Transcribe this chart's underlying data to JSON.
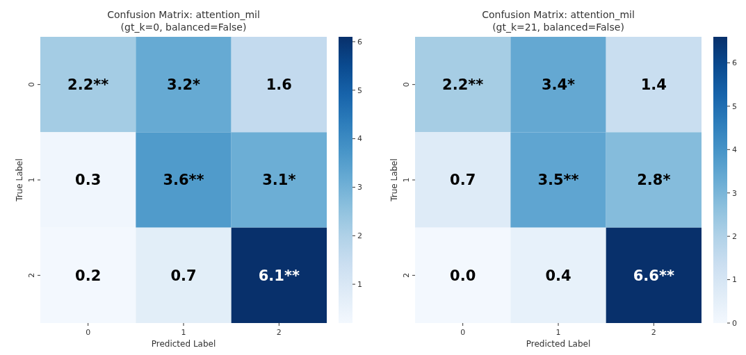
{
  "chart_data": [
    {
      "type": "heatmap",
      "title": "Confusion Matrix: attention_mil",
      "subtitle": "(gt_k=0, balanced=False)",
      "xlabel": "Predicted Label",
      "ylabel": "True Label",
      "categories": [
        "0",
        "1",
        "2"
      ],
      "y_categories": [
        "0",
        "1",
        "2"
      ],
      "cells": [
        [
          2.2,
          3.2,
          1.6
        ],
        [
          0.3,
          3.6,
          3.1
        ],
        [
          0.2,
          0.7,
          6.1
        ]
      ],
      "cell_labels": [
        [
          "2.2**",
          "3.2*",
          "1.6"
        ],
        [
          "0.3",
          "3.6**",
          "3.1*"
        ],
        [
          "0.2",
          "0.7",
          "6.1**"
        ]
      ],
      "clim": [
        0.2,
        6.1
      ],
      "cticks": [
        1,
        2,
        3,
        4,
        5,
        6
      ]
    },
    {
      "type": "heatmap",
      "title": "Confusion Matrix: attention_mil",
      "subtitle": "(gt_k=21, balanced=False)",
      "xlabel": "Predicted Label",
      "ylabel": "True Label",
      "categories": [
        "0",
        "1",
        "2"
      ],
      "y_categories": [
        "0",
        "1",
        "2"
      ],
      "cells": [
        [
          2.2,
          3.4,
          1.4
        ],
        [
          0.7,
          3.5,
          2.8
        ],
        [
          0.0,
          0.4,
          6.6
        ]
      ],
      "cell_labels": [
        [
          "2.2**",
          "3.4*",
          "1.4"
        ],
        [
          "0.7",
          "3.5**",
          "2.8*"
        ],
        [
          "0.0",
          "0.4",
          "6.6**"
        ]
      ],
      "clim": [
        0.0,
        6.6
      ],
      "cticks": [
        0,
        1,
        2,
        3,
        4,
        5,
        6
      ]
    }
  ]
}
